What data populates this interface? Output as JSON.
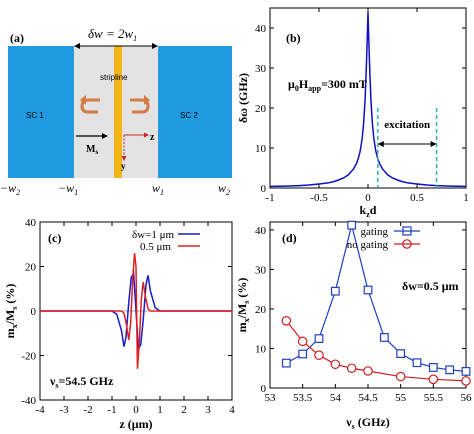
{
  "panel_a": {
    "label": "(a)",
    "width_label_lhs": "δw",
    "width_label_eq": " = 2w",
    "width_label_sub": "1",
    "stripline_label": "stripline",
    "sc1_label": "SC 1",
    "sc2_label": "SC 2",
    "magnetization_label": "M",
    "magnetization_sub": "s",
    "z_axis_label": "z",
    "y_axis_label": "y",
    "ticks": [
      {
        "main": "−w",
        "sub": "2"
      },
      {
        "main": "−w",
        "sub": "1"
      },
      {
        "main": "w",
        "sub": "1"
      },
      {
        "main": "w",
        "sub": "2"
      }
    ],
    "colors": {
      "superconductor": "#1f9be0",
      "gap": "#e3e3e3",
      "stripline": "#f5b417",
      "arrow": "#d37a45",
      "axis": "#d01f1f"
    }
  },
  "chart_data": [
    {
      "type": "line",
      "panel_label": "(b)",
      "xlabel_main": "k",
      "xlabel_sub": "z",
      "xlabel_tail": "d",
      "ylabel": "δω (GHz)",
      "xlim": [
        -1,
        1
      ],
      "ylim": [
        0,
        45
      ],
      "xticks": [
        "-1",
        "-0.5",
        "0",
        "0.5",
        "1"
      ],
      "yticks": [
        "0",
        "10",
        "20",
        "30",
        "40"
      ],
      "annotation": {
        "prefix": "μ",
        "prefix_sub": "0",
        "field": "H",
        "field_sub": "app",
        "value": "=300 mT"
      },
      "excitation_label": "excitation",
      "excitation_range": [
        0.1,
        0.7
      ],
      "series": [
        {
          "color": "#1010c0",
          "x": [
            -1.0,
            -0.9,
            -0.8,
            -0.7,
            -0.6,
            -0.5,
            -0.4,
            -0.35,
            -0.3,
            -0.25,
            -0.2,
            -0.15,
            -0.12,
            -0.1,
            -0.08,
            -0.06,
            -0.045,
            -0.03,
            -0.02,
            -0.01,
            0.0,
            0.01,
            0.02,
            0.03,
            0.045,
            0.06,
            0.08,
            0.1,
            0.12,
            0.15,
            0.2,
            0.25,
            0.3,
            0.35,
            0.4,
            0.5,
            0.6,
            0.7,
            0.8,
            0.9,
            1.0
          ],
          "values": [
            0.4,
            0.45,
            0.5,
            0.6,
            0.75,
            1.0,
            1.3,
            1.6,
            2.0,
            2.5,
            3.3,
            4.7,
            6.0,
            7.3,
            9.2,
            12.3,
            16.0,
            22.0,
            28.0,
            35.5,
            44.0,
            35.5,
            28.0,
            22.0,
            16.0,
            12.3,
            9.2,
            7.3,
            6.0,
            4.7,
            3.3,
            2.5,
            2.0,
            1.6,
            1.3,
            1.0,
            0.75,
            0.6,
            0.5,
            0.45,
            0.4
          ]
        }
      ]
    },
    {
      "type": "line",
      "panel_label": "(c)",
      "xlabel": "z (μm)",
      "ylabel_main": "m",
      "ylabel_sub1": "x",
      "ylabel_mid": "/M",
      "ylabel_sub2": "s",
      "ylabel_tail": " (%)",
      "xlim": [
        -4,
        4
      ],
      "ylim": [
        -40,
        40
      ],
      "xticks": [
        "-4",
        "-3",
        "-2",
        "-1",
        "0",
        "1",
        "2",
        "3",
        "4"
      ],
      "yticks": [
        "-40",
        "-20",
        "0",
        "20",
        "40"
      ],
      "annotation": {
        "prefix": "ν",
        "prefix_sub": "s",
        "value": "=54.5 GHz"
      },
      "series": [
        {
          "name": "δw=1 μm",
          "color": "#1a1acc",
          "x": [
            -4.0,
            -1.0,
            -0.8,
            -0.6,
            -0.5,
            -0.42,
            -0.3,
            -0.2,
            -0.1,
            0.0,
            0.1,
            0.2,
            0.3,
            0.42,
            0.5,
            0.6,
            0.8,
            1.0,
            4.0
          ],
          "values": [
            0,
            0,
            -1.5,
            -9,
            -16,
            -12,
            4,
            15,
            17,
            0,
            -17,
            -15,
            -4,
            12,
            16,
            9,
            1.5,
            0,
            0
          ]
        },
        {
          "name": "0.5 μm",
          "color": "#e02020",
          "x": [
            -4.0,
            -0.6,
            -0.5,
            -0.4,
            -0.3,
            -0.22,
            -0.14,
            -0.06,
            0.0,
            0.06,
            0.14,
            0.22,
            0.3,
            0.4,
            0.5,
            0.6,
            4.0
          ],
          "values": [
            0,
            0,
            -1,
            -6,
            -13,
            -5,
            14,
            26,
            20,
            -26,
            -14,
            5,
            13,
            6,
            1,
            0,
            0
          ]
        }
      ]
    },
    {
      "type": "line",
      "panel_label": "(d)",
      "xlabel_main": "ν",
      "xlabel_sub": "s",
      "xlabel_tail": " (GHz)",
      "ylabel_main": "m",
      "ylabel_sub1": "x",
      "ylabel_mid": "/M",
      "ylabel_sub2": "s",
      "ylabel_tail": " (%)",
      "xlim": [
        53,
        56
      ],
      "ylim": [
        0,
        42
      ],
      "xticks": [
        "53",
        "53.5",
        "54",
        "54.5",
        "55",
        "55.5",
        "56"
      ],
      "yticks": [
        "0",
        "10",
        "20",
        "30",
        "40"
      ],
      "annotation": "δw=0.5 μm",
      "series": [
        {
          "name": "gating",
          "color": "#1f3fc0",
          "marker": "square",
          "x": [
            53.25,
            53.5,
            53.75,
            54.0,
            54.25,
            54.5,
            54.75,
            55.0,
            55.25,
            55.5,
            55.75,
            56.0
          ],
          "values": [
            6.3,
            8.6,
            12.5,
            24.5,
            41.2,
            24.8,
            12.8,
            8.7,
            6.4,
            5.2,
            4.6,
            4.2
          ]
        },
        {
          "name": "no gating",
          "color": "#d02020",
          "marker": "circle",
          "x": [
            53.25,
            53.5,
            53.75,
            54.0,
            54.25,
            54.5,
            55.0,
            55.5,
            56.0
          ],
          "values": [
            17.0,
            11.8,
            8.3,
            6.0,
            5.0,
            4.3,
            2.9,
            2.2,
            1.8
          ]
        }
      ]
    }
  ]
}
